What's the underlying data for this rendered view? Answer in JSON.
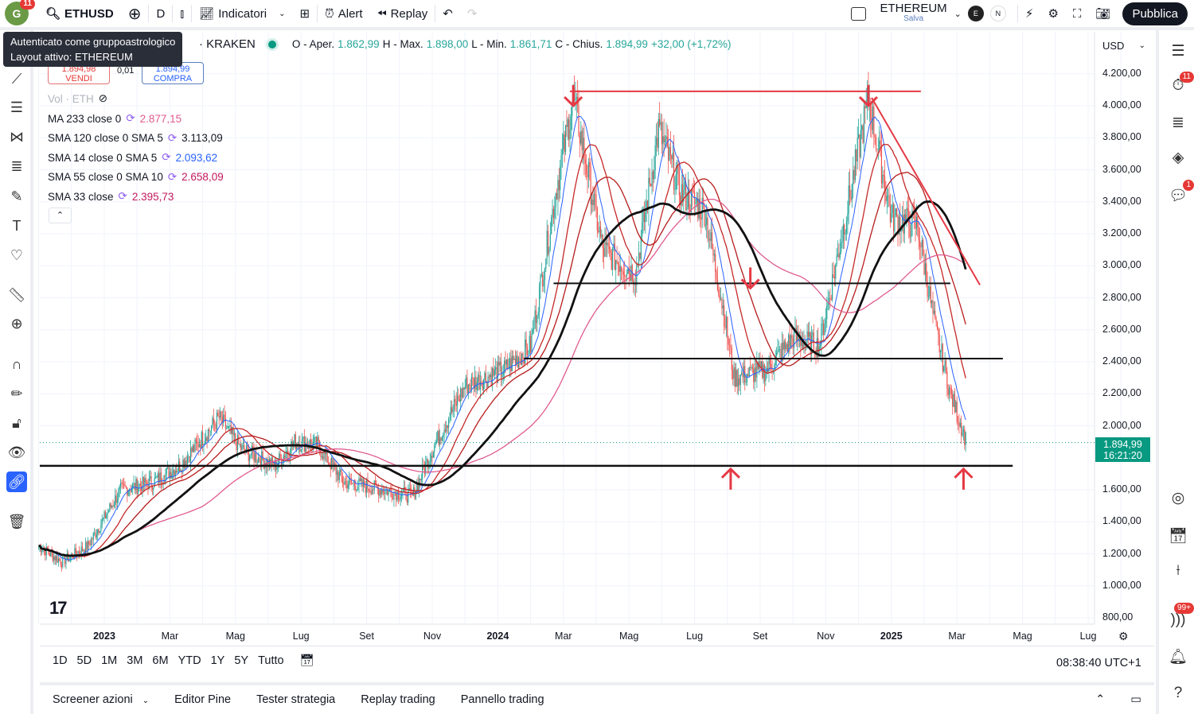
{
  "topbar": {
    "avatar_letter": "G",
    "avatar_badge": "11",
    "symbol": "ETHUSD",
    "interval": "D",
    "indicators": "Indicatori",
    "alert": "Alert",
    "replay": "Replay",
    "layout_name": "ETHEREUM",
    "layout_status": "Salva",
    "chip_e": "E",
    "chip_n": "N",
    "publish": "Pubblica"
  },
  "tooltip": {
    "line1": "Autenticato come gruppoastrologico",
    "line2": "Layout attivo: ETHEREUM"
  },
  "symbol_header": {
    "exchange": "· KRAKEN",
    "open_label": "O - Aper.",
    "open": "1.862,99",
    "high_label": "H - Max.",
    "high": "1.898,00",
    "low_label": "L - Min.",
    "low": "1.861,71",
    "close_label": "C - Chius.",
    "close": "1.894,99",
    "change": "+32,00 (+1,72%)"
  },
  "trade": {
    "sell_price": "1.894,98",
    "sell_label": "VENDI",
    "spread": "0,01",
    "buy_price": "1.894,99",
    "buy_label": "COMPRA"
  },
  "indicators": [
    {
      "label": "Vol · ETH",
      "value": "",
      "color": "#b2b5be"
    },
    {
      "label": "MA 233 close 0",
      "value": "2.877,15",
      "color": "#e05b8f"
    },
    {
      "label": "SMA 120 close 0 SMA 5",
      "value": "3.113,09",
      "color": "#131722"
    },
    {
      "label": "SMA 14 close 0 SMA 5",
      "value": "2.093,62",
      "color": "#2962ff"
    },
    {
      "label": "SMA 55 close 0 SMA 10",
      "value": "2.658,09",
      "color": "#c2185b"
    },
    {
      "label": "SMA 33 close",
      "value": "2.395,73",
      "color": "#c2185b"
    }
  ],
  "currency": "USD",
  "price_axis": [
    "4.200,00",
    "4.000,00",
    "3.800,00",
    "3.600,00",
    "3.400,00",
    "3.200,00",
    "3.000,00",
    "2.800,00",
    "2.600,00",
    "2.400,00",
    "2.200,00",
    "2.000,00",
    "1.600,00",
    "1.400,00",
    "1.200,00",
    "1.000,00",
    "800,00"
  ],
  "price_axis_values": [
    4200,
    4000,
    3800,
    3600,
    3400,
    3200,
    3000,
    2800,
    2600,
    2400,
    2200,
    2000,
    1600,
    1400,
    1200,
    1000,
    800
  ],
  "last_price": {
    "price": "1.894,99",
    "countdown": "16:21:20",
    "value": 1894.99
  },
  "time_axis": [
    {
      "label": "2023",
      "m": 0,
      "bold": true
    },
    {
      "label": "Mar",
      "m": 2
    },
    {
      "label": "Mag",
      "m": 4
    },
    {
      "label": "Lug",
      "m": 6
    },
    {
      "label": "Set",
      "m": 8
    },
    {
      "label": "Nov",
      "m": 10
    },
    {
      "label": "2024",
      "m": 12,
      "bold": true
    },
    {
      "label": "Mar",
      "m": 14
    },
    {
      "label": "Mag",
      "m": 16
    },
    {
      "label": "Lug",
      "m": 18
    },
    {
      "label": "Set",
      "m": 20
    },
    {
      "label": "Nov",
      "m": 22
    },
    {
      "label": "2025",
      "m": 24,
      "bold": true
    },
    {
      "label": "Mar",
      "m": 26
    },
    {
      "label": "Mag",
      "m": 28
    },
    {
      "label": "Lug",
      "m": 30
    }
  ],
  "ranges": [
    "1D",
    "5D",
    "1M",
    "3M",
    "6M",
    "YTD",
    "1Y",
    "5Y",
    "Tutto"
  ],
  "clock": "08:38:40 UTC+1",
  "bottom_tabs": [
    "Screener azioni",
    "Editor Pine",
    "Tester strategia",
    "Replay trading",
    "Pannello trading"
  ],
  "right_badges": {
    "alerts": "11",
    "chat": "1",
    "notifications": "99+"
  },
  "chart_data": {
    "type": "line",
    "x_unit": "months since Jan 2023",
    "price_path": [
      [
        -2,
        1250
      ],
      [
        -1.3,
        1150
      ],
      [
        -0.5,
        1250
      ],
      [
        0.5,
        1600
      ],
      [
        1.5,
        1650
      ],
      [
        2.3,
        1750
      ],
      [
        3.5,
        2050
      ],
      [
        4.2,
        1850
      ],
      [
        5.2,
        1750
      ],
      [
        5.8,
        1900
      ],
      [
        6.5,
        1880
      ],
      [
        7.3,
        1650
      ],
      [
        8.5,
        1600
      ],
      [
        9.4,
        1560
      ],
      [
        10,
        1850
      ],
      [
        11,
        2250
      ],
      [
        12.2,
        2350
      ],
      [
        13,
        2500
      ],
      [
        13.8,
        3500
      ],
      [
        14.3,
        4050
      ],
      [
        15.2,
        3100
      ],
      [
        16.2,
        2950
      ],
      [
        16.9,
        3850
      ],
      [
        17.6,
        3450
      ],
      [
        18.3,
        3350
      ],
      [
        18.9,
        2700
      ],
      [
        19.2,
        2300
      ],
      [
        20.2,
        2350
      ],
      [
        21,
        2550
      ],
      [
        21.8,
        2500
      ],
      [
        22.6,
        3300
      ],
      [
        23.3,
        4050
      ],
      [
        24,
        3300
      ],
      [
        24.8,
        3250
      ],
      [
        25.3,
        2650
      ],
      [
        25.8,
        2200
      ],
      [
        26.3,
        1895
      ]
    ],
    "horizontal_lines": [
      4090,
      2890,
      2420,
      1750
    ],
    "ylim": [
      800,
      4200
    ]
  }
}
